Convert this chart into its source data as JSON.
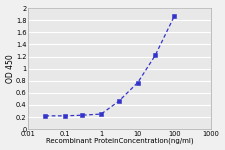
{
  "x": [
    0.03,
    0.1,
    0.3,
    1,
    3,
    10,
    30,
    100
  ],
  "y": [
    0.22,
    0.22,
    0.23,
    0.25,
    0.46,
    0.77,
    1.22,
    1.87
  ],
  "line_color": "#3333CC",
  "marker_color": "#3333CC",
  "marker": "s",
  "marker_size": 2.5,
  "line_width": 0.9,
  "xlabel": "Recombinant ProteinConcentration(ng/ml)",
  "ylabel": "OD 450",
  "xlim": [
    0.01,
    1000
  ],
  "ylim": [
    0,
    2
  ],
  "yticks": [
    0,
    0.2,
    0.4,
    0.6,
    0.8,
    1.0,
    1.2,
    1.4,
    1.6,
    1.8,
    2.0
  ],
  "xticks": [
    0.01,
    0.1,
    1,
    10,
    100,
    1000
  ],
  "xtick_labels": [
    "0.01",
    "0.1",
    "1",
    "10",
    "100",
    "1000"
  ],
  "plot_bg_color": "#e8e8e8",
  "fig_bg_color": "#f0f0f0",
  "grid_color": "#ffffff",
  "label_fontsize": 5.0,
  "tick_fontsize": 4.8,
  "ylabel_fontsize": 5.5
}
